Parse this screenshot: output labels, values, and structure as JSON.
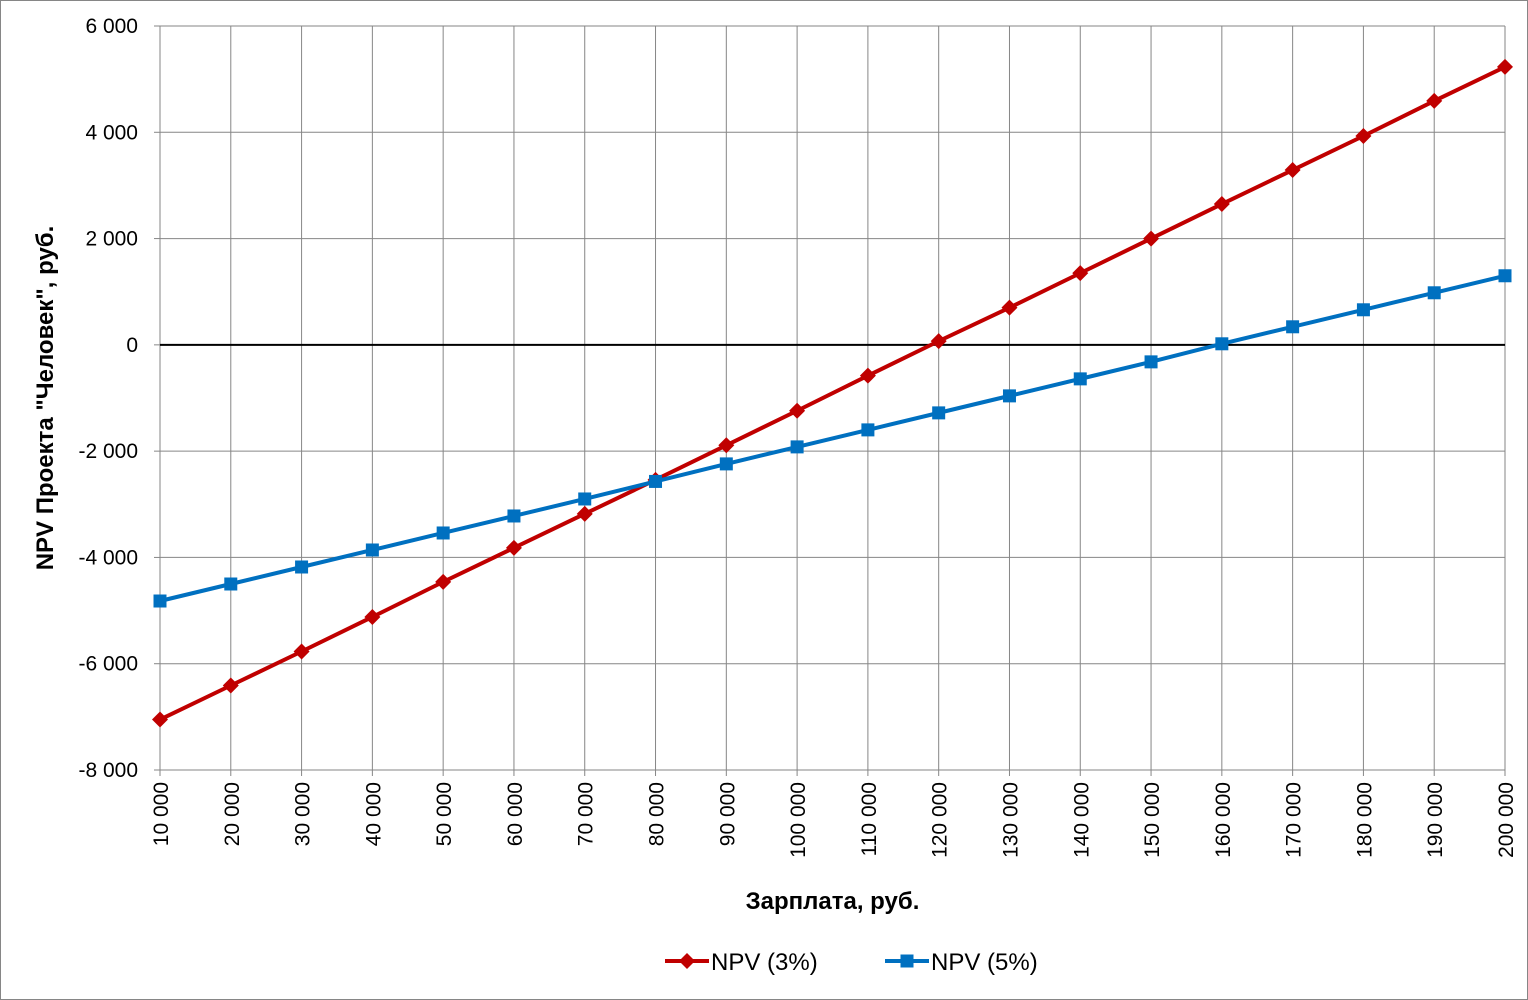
{
  "chart_data": {
    "type": "line",
    "xlabel": "Зарплата, руб.",
    "ylabel": "NPV Проекта \"Человек\", руб.",
    "x": [
      10000,
      20000,
      30000,
      40000,
      50000,
      60000,
      70000,
      80000,
      90000,
      100000,
      110000,
      120000,
      130000,
      140000,
      150000,
      160000,
      170000,
      180000,
      190000,
      200000
    ],
    "x_tick_labels": [
      "10 000",
      "20 000",
      "30 000",
      "40 000",
      "50 000",
      "60 000",
      "70 000",
      "80 000",
      "90 000",
      "100 000",
      "110 000",
      "120 000",
      "130 000",
      "140 000",
      "150 000",
      "160 000",
      "170 000",
      "180 000",
      "190 000",
      "200 000"
    ],
    "y_ticks": [
      -8000,
      -6000,
      -4000,
      -2000,
      0,
      2000,
      4000,
      6000
    ],
    "y_tick_labels": [
      "-8 000",
      "-6 000",
      "-4 000",
      "-2 000",
      "0",
      "2 000",
      "4 000",
      "6 000"
    ],
    "ylim": [
      -8000,
      6000
    ],
    "grid": true,
    "legend_position": "bottom",
    "series": [
      {
        "name": "NPV (3%)",
        "color": "#C00000",
        "marker": "diamond",
        "values": [
          -7050,
          -6410,
          -5770,
          -5120,
          -4460,
          -3820,
          -3180,
          -2540,
          -1890,
          -1240,
          -580,
          70,
          700,
          1350,
          2000,
          2650,
          3290,
          3930,
          4590,
          5230
        ]
      },
      {
        "name": "NPV (5%)",
        "color": "#0070C0",
        "marker": "square",
        "values": [
          -4820,
          -4500,
          -4180,
          -3860,
          -3540,
          -3220,
          -2900,
          -2570,
          -2240,
          -1920,
          -1600,
          -1280,
          -960,
          -640,
          -320,
          20,
          340,
          660,
          980,
          1300
        ]
      }
    ]
  }
}
